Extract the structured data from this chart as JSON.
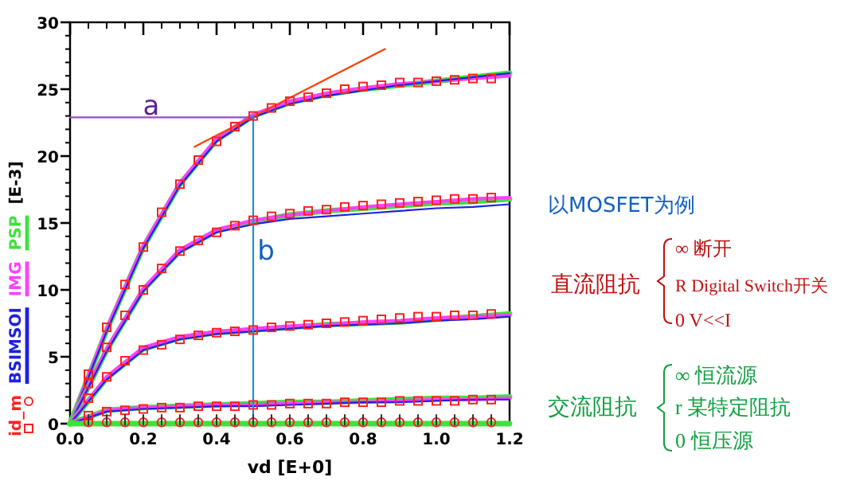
{
  "chart_data": [
    {
      "type": "line",
      "xlabel": "vd  [E+0]",
      "ylabel": "[E-3]",
      "legend": "left",
      "grid": false,
      "xlim": [
        0,
        1.2
      ],
      "xticks": [
        {
          "value": 0,
          "label": "0.0"
        },
        {
          "value": 0.2,
          "label": "0.2"
        },
        {
          "value": 0.4,
          "label": "0.4"
        },
        {
          "value": 0.6,
          "label": "0.6"
        },
        {
          "value": 0.8,
          "label": "0.8"
        },
        {
          "value": 1,
          "label": "1.0"
        },
        {
          "value": 1.2,
          "label": "1.2"
        }
      ],
      "ylim": [
        0,
        30
      ],
      "yticks": [
        0,
        5,
        10,
        15,
        20,
        25,
        30
      ],
      "x": [
        0.05,
        0.1,
        0.15,
        0.2,
        0.25,
        0.3,
        0.35,
        0.4,
        0.45,
        0.5,
        0.55,
        0.6,
        0.65,
        0.7,
        0.75,
        0.8,
        0.85,
        0.9,
        0.95,
        1.0,
        1.05,
        1.1,
        1.15
      ],
      "annotations": [
        "a",
        "b"
      ],
      "series": [
        {
          "type": "line",
          "name": "PSP",
          "color": "#40e040",
          "x": [
            0,
            0.1,
            0.2,
            0.3,
            0.4,
            0.5,
            0.6,
            0.7,
            0.8,
            0.9,
            1.0,
            1.1,
            1.2
          ],
          "values": [
            0,
            7.0,
            13.2,
            17.9,
            21.2,
            23.0,
            24.0,
            24.6,
            25.0,
            25.3,
            25.6,
            25.9,
            26.2
          ]
        },
        {
          "type": "line",
          "name": "IMG",
          "color": "#ff40ff",
          "x": [
            0,
            0.1,
            0.2,
            0.3,
            0.4,
            0.5,
            0.6,
            0.7,
            0.8,
            0.9,
            1.0,
            1.1,
            1.2
          ],
          "values": [
            0,
            7.1,
            13.3,
            18.0,
            21.3,
            23.1,
            24.1,
            24.7,
            25.1,
            25.4,
            25.6,
            25.8,
            26.0
          ]
        },
        {
          "type": "line",
          "name": "BSIMSOI",
          "color": "#2020e0",
          "x": [
            0,
            0.1,
            0.2,
            0.3,
            0.4,
            0.5,
            0.6,
            0.7,
            0.8,
            0.9,
            1.0,
            1.1,
            1.2
          ],
          "values": [
            0,
            6.9,
            13.1,
            17.8,
            21.1,
            22.9,
            23.9,
            24.5,
            24.9,
            25.3,
            25.6,
            25.9,
            26.2
          ]
        },
        {
          "type": "line",
          "color": "#40e040",
          "x": [
            0,
            0.1,
            0.2,
            0.3,
            0.4,
            0.5,
            0.6,
            0.7,
            0.8,
            0.9,
            1.0,
            1.1,
            1.2
          ],
          "values": [
            0,
            5.5,
            10.0,
            12.9,
            14.4,
            15.1,
            15.6,
            15.9,
            16.1,
            16.3,
            16.5,
            16.6,
            16.8
          ]
        },
        {
          "type": "line",
          "color": "#ff40ff",
          "x": [
            0,
            0.1,
            0.2,
            0.3,
            0.4,
            0.5,
            0.6,
            0.7,
            0.8,
            0.9,
            1.0,
            1.1,
            1.2
          ],
          "values": [
            0,
            5.6,
            10.1,
            13.0,
            14.5,
            15.2,
            15.6,
            15.9,
            16.2,
            16.4,
            16.6,
            16.8,
            16.9
          ]
        },
        {
          "type": "line",
          "color": "#2020e0",
          "x": [
            0,
            0.1,
            0.2,
            0.3,
            0.4,
            0.5,
            0.6,
            0.7,
            0.8,
            0.9,
            1.0,
            1.1,
            1.2
          ],
          "values": [
            0,
            5.4,
            9.9,
            12.8,
            14.3,
            14.9,
            15.3,
            15.5,
            15.7,
            15.9,
            16.1,
            16.2,
            16.4
          ]
        },
        {
          "type": "line",
          "color": "#40e040",
          "x": [
            0,
            0.1,
            0.2,
            0.3,
            0.4,
            0.5,
            0.6,
            0.7,
            0.8,
            0.9,
            1.0,
            1.1,
            1.2
          ],
          "values": [
            0,
            3.4,
            5.6,
            6.4,
            6.8,
            7.0,
            7.2,
            7.4,
            7.5,
            7.6,
            7.8,
            8.0,
            8.2
          ]
        },
        {
          "type": "line",
          "color": "#ff40ff",
          "x": [
            0,
            0.1,
            0.2,
            0.3,
            0.4,
            0.5,
            0.6,
            0.7,
            0.8,
            0.9,
            1.0,
            1.1,
            1.2
          ],
          "values": [
            0,
            3.5,
            5.7,
            6.5,
            6.9,
            7.1,
            7.3,
            7.4,
            7.6,
            7.7,
            7.9,
            8.0,
            8.1
          ]
        },
        {
          "type": "line",
          "color": "#2020e0",
          "x": [
            0,
            0.1,
            0.2,
            0.3,
            0.4,
            0.5,
            0.6,
            0.7,
            0.8,
            0.9,
            1.0,
            1.1,
            1.2
          ],
          "values": [
            0,
            3.3,
            5.5,
            6.3,
            6.7,
            6.9,
            7.1,
            7.3,
            7.4,
            7.5,
            7.7,
            7.8,
            8.0
          ]
        },
        {
          "type": "line",
          "color": "#40e040",
          "x": [
            0,
            0.1,
            0.2,
            0.3,
            0.4,
            0.5,
            0.6,
            0.7,
            0.8,
            0.9,
            1.0,
            1.1,
            1.2
          ],
          "values": [
            0,
            1.0,
            1.2,
            1.3,
            1.4,
            1.5,
            1.6,
            1.6,
            1.7,
            1.8,
            1.9,
            1.9,
            2.0
          ]
        },
        {
          "type": "line",
          "color": "#ff40ff",
          "x": [
            0,
            0.1,
            0.2,
            0.3,
            0.4,
            0.5,
            0.6,
            0.7,
            0.8,
            0.9,
            1.0,
            1.1,
            1.2
          ],
          "values": [
            0,
            1.0,
            1.2,
            1.3,
            1.4,
            1.4,
            1.5,
            1.6,
            1.6,
            1.7,
            1.8,
            1.8,
            1.9
          ]
        },
        {
          "type": "line",
          "color": "#2020e0",
          "x": [
            0,
            0.1,
            0.2,
            0.3,
            0.4,
            0.5,
            0.6,
            0.7,
            0.8,
            0.9,
            1.0,
            1.1,
            1.2
          ],
          "values": [
            0,
            0.9,
            1.1,
            1.2,
            1.3,
            1.3,
            1.4,
            1.5,
            1.6,
            1.6,
            1.7,
            1.8,
            1.8
          ]
        },
        {
          "type": "line",
          "color": "#40e040",
          "x": [
            0,
            1.2
          ],
          "values": [
            0,
            0
          ]
        },
        {
          "type": "line",
          "color": "#ff4000",
          "x": [
            0.34,
            0.86
          ],
          "values": [
            20.7,
            28.0
          ]
        },
        {
          "type": "line",
          "color": "#9050c0",
          "x": [
            0,
            0.5
          ],
          "values": [
            22.9,
            22.9
          ]
        },
        {
          "type": "line",
          "color": "#2090d0",
          "x": [
            0.5,
            0.5
          ],
          "values": [
            0,
            23.0
          ]
        },
        {
          "type": "scatter",
          "name": "id_m",
          "color": "#ff2020",
          "marker": "square",
          "values": [
            3.7,
            7.2,
            10.4,
            13.2,
            15.8,
            17.9,
            19.7,
            21.1,
            22.2,
            23.0,
            23.6,
            24.1,
            24.4,
            24.7,
            25.0,
            25.2,
            25.3,
            25.5,
            25.5,
            25.6,
            25.7,
            25.8,
            25.8
          ]
        },
        {
          "type": "scatter",
          "color": "#ff2020",
          "marker": "square",
          "values": [
            3.0,
            5.7,
            8.1,
            10.0,
            11.6,
            12.9,
            13.7,
            14.3,
            14.8,
            15.2,
            15.5,
            15.7,
            15.9,
            16.0,
            16.2,
            16.3,
            16.4,
            16.5,
            16.6,
            16.7,
            16.8,
            16.8,
            16.9
          ]
        },
        {
          "type": "scatter",
          "color": "#ff2020",
          "marker": "square",
          "values": [
            1.9,
            3.5,
            4.7,
            5.5,
            5.9,
            6.3,
            6.6,
            6.8,
            6.9,
            7.0,
            7.2,
            7.3,
            7.4,
            7.5,
            7.6,
            7.7,
            7.8,
            7.9,
            8.0,
            8.0,
            8.1,
            8.1,
            8.2
          ]
        },
        {
          "type": "scatter",
          "color": "#ff2020",
          "marker": "square",
          "values": [
            0.6,
            0.9,
            1.0,
            1.1,
            1.2,
            1.2,
            1.3,
            1.3,
            1.3,
            1.4,
            1.4,
            1.5,
            1.5,
            1.5,
            1.6,
            1.6,
            1.6,
            1.7,
            1.7,
            1.7,
            1.7,
            1.8,
            1.8
          ]
        },
        {
          "type": "scatter",
          "color": "#ff2020",
          "marker": "circle",
          "values": [
            0.1,
            0.1,
            0.1,
            0.1,
            0.1,
            0.1,
            0.1,
            0.1,
            0.1,
            0.1,
            0.1,
            0.1,
            0.1,
            0.1,
            0.1,
            0.1,
            0.1,
            0.1,
            0.1,
            0.1,
            0.1,
            0.1,
            0.1
          ]
        }
      ]
    },
    {
      "type": "other",
      "annotations": [
        "以MOSFET为例",
        "直流阻抗",
        "∞ 断开",
        "R  Digital Switch开关",
        "0  V<<I",
        "交流阻抗",
        "∞ 恒流源",
        "r  某特定阻抗",
        "0 恒压源"
      ]
    }
  ]
}
